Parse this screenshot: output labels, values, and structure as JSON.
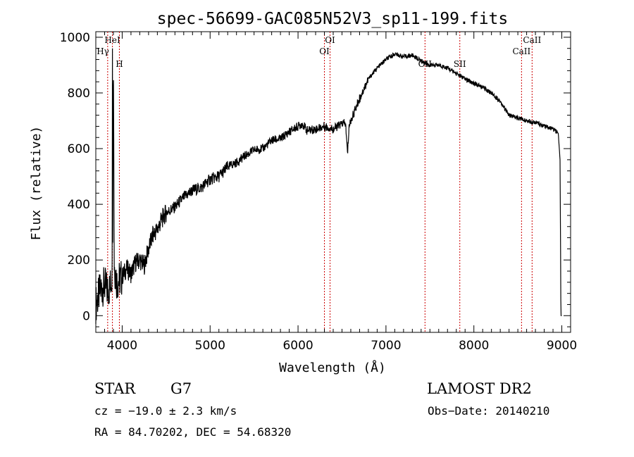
{
  "chart_data": {
    "type": "line",
    "title": "spec-56699-GAC085N52V3_sp11-199.fits",
    "xlabel": "Wavelength (Å)",
    "ylabel": "Flux (relative)",
    "xlim": [
      3700,
      9100
    ],
    "ylim": [
      -60,
      1020
    ],
    "xticks": [
      4000,
      5000,
      6000,
      7000,
      8000,
      9000
    ],
    "yticks": [
      0,
      200,
      400,
      600,
      800,
      1000
    ],
    "grid": false,
    "series": [
      {
        "x": [
          3700,
          3750,
          3800,
          3830,
          3860,
          3890,
          3900,
          3910,
          3940,
          3970,
          4000,
          4050,
          4100,
          4150,
          4200,
          4250,
          4300,
          4350,
          4400,
          4450,
          4500,
          4600,
          4700,
          4800,
          4900,
          5000,
          5100,
          5200,
          5300,
          5400,
          5500,
          5600,
          5700,
          5800,
          5900,
          6000,
          6050,
          6100,
          6200,
          6300,
          6400,
          6500,
          6540,
          6563,
          6580,
          6600,
          6700,
          6800,
          6900,
          7000,
          7100,
          7200,
          7300,
          7400,
          7500,
          7600,
          7700,
          7800,
          7900,
          8000,
          8100,
          8200,
          8300,
          8400,
          8500,
          8600,
          8700,
          8800,
          8900,
          8960,
          8980,
          8990,
          9000
        ],
        "y": [
          40,
          90,
          110,
          90,
          100,
          160,
          960,
          180,
          120,
          130,
          140,
          170,
          150,
          190,
          200,
          180,
          240,
          290,
          310,
          345,
          370,
          390,
          425,
          450,
          460,
          490,
          500,
          535,
          550,
          575,
          595,
          600,
          630,
          635,
          660,
          680,
          690,
          665,
          670,
          680,
          670,
          690,
          690,
          580,
          680,
          700,
          780,
          850,
          890,
          920,
          940,
          930,
          935,
          915,
          900,
          900,
          890,
          870,
          850,
          835,
          820,
          800,
          770,
          720,
          710,
          700,
          695,
          680,
          670,
          655,
          560,
          0,
          0
        ]
      }
    ],
    "line_markers": [
      {
        "label": "Hγ",
        "x": 3835,
        "side": "left",
        "level": 2
      },
      {
        "label": "HeI",
        "x": 3889,
        "side": "center",
        "level": 1
      },
      {
        "label": "H",
        "x": 3968,
        "side": "center",
        "level": 3
      },
      {
        "label": "OI",
        "x": 6300,
        "side": "center",
        "level": 2
      },
      {
        "label": "OI",
        "x": 6364,
        "side": "center",
        "level": 1
      },
      {
        "label": "OII",
        "x": 7444,
        "side": "center",
        "level": 3
      },
      {
        "label": "SII",
        "x": 7840,
        "side": "center",
        "level": 3
      },
      {
        "label": "CaII",
        "x": 8542,
        "side": "center",
        "level": 2
      },
      {
        "label": "CaII",
        "x": 8662,
        "side": "center",
        "level": 1
      }
    ],
    "line_color": "#000000",
    "marker_color": "#cc0000"
  },
  "info": {
    "class_label": "STAR",
    "subclass": "G7",
    "survey": "LAMOST DR2",
    "cz": "cz = −19.0 ± 2.3 km/s",
    "obs_date": "Obs−Date: 20140210",
    "radec": "RA =  84.70202, DEC =  54.68320"
  }
}
